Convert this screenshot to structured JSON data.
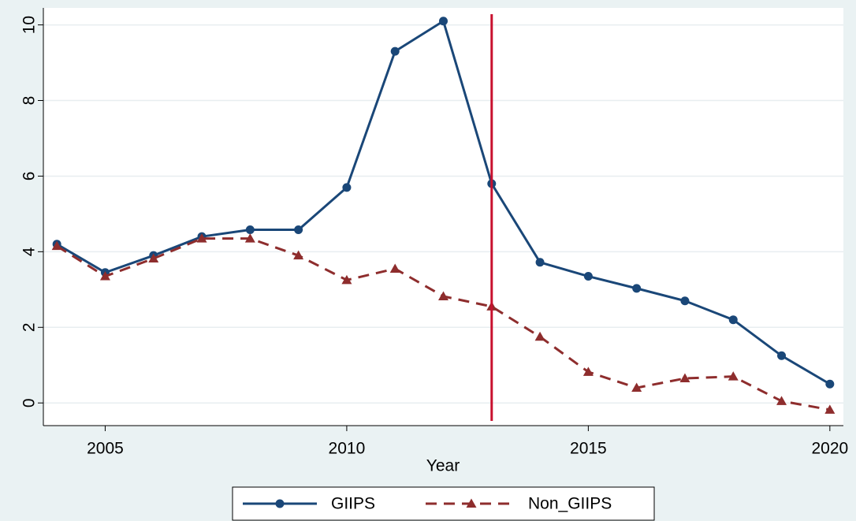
{
  "chart_data": {
    "type": "line",
    "x_label": "Year",
    "x": [
      2004,
      2005,
      2006,
      2007,
      2008,
      2009,
      2010,
      2011,
      2012,
      2013,
      2014,
      2015,
      2016,
      2017,
      2018,
      2019,
      2020
    ],
    "series": [
      {
        "name": "GIIPS",
        "color": "#1a4778",
        "marker": "circle",
        "dash": false,
        "values": [
          4.2,
          3.45,
          3.9,
          4.4,
          4.58,
          4.58,
          5.7,
          9.3,
          10.1,
          5.8,
          3.72,
          3.35,
          3.03,
          2.7,
          2.2,
          1.25,
          0.5
        ]
      },
      {
        "name": "Non_GIIPS",
        "color": "#8e2d2d",
        "marker": "triangle",
        "dash": true,
        "values": [
          4.15,
          3.35,
          3.82,
          4.35,
          4.35,
          3.9,
          3.25,
          3.55,
          2.82,
          2.55,
          1.75,
          0.82,
          0.4,
          0.65,
          0.7,
          0.05,
          -0.18
        ]
      }
    ],
    "vline": 2013,
    "vline_color": "#c8102e",
    "xlim": [
      2003.72,
      2020.28
    ],
    "xticks": [
      2005,
      2010,
      2015,
      2020
    ],
    "ylim": [
      -0.6,
      10.45
    ],
    "yticks": [
      0,
      2,
      4,
      6,
      8,
      10
    ],
    "grid": true,
    "legend": "bottom"
  }
}
